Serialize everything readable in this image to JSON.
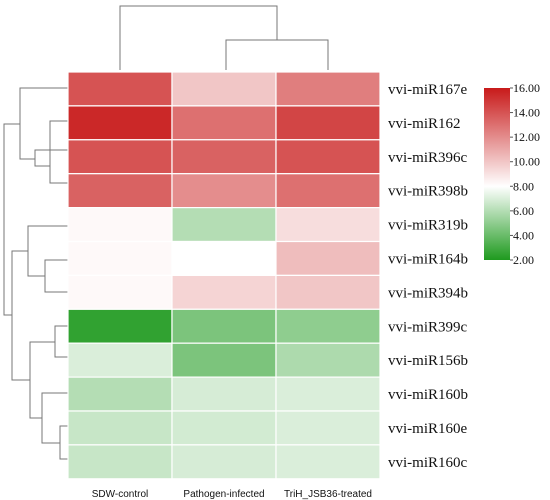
{
  "chart_data": {
    "type": "heatmap",
    "columns": [
      "SDW-control",
      "Pathogen-infected",
      "TriH_JSB36-treated"
    ],
    "rows": [
      "vvi-miR167e",
      "vvi-miR162",
      "vvi-miR396c",
      "vvi-miR398b",
      "vvi-miR319b",
      "vvi-miR164b",
      "vvi-miR394b",
      "vvi-miR399c",
      "vvi-miR156b",
      "vvi-miR160b",
      "vvi-miR160e",
      "vvi-miR160c"
    ],
    "values": [
      [
        14.0,
        10.0,
        12.5
      ],
      [
        15.5,
        13.0,
        14.5
      ],
      [
        14.0,
        13.5,
        14.0
      ],
      [
        13.5,
        12.0,
        13.0
      ],
      [
        8.2,
        6.0,
        9.2
      ],
      [
        8.2,
        8.0,
        10.3
      ],
      [
        8.2,
        9.5,
        10.0
      ],
      [
        2.5,
        4.5,
        5.0
      ],
      [
        7.0,
        4.5,
        5.8
      ],
      [
        6.0,
        6.9,
        7.0
      ],
      [
        6.5,
        6.8,
        7.0
      ],
      [
        6.5,
        6.9,
        7.0
      ]
    ],
    "colorbar": {
      "min": 2.0,
      "max": 16.0,
      "mid": 8.0,
      "ticks": [
        "2.00",
        "4.00",
        "6.00",
        "8.00",
        "10.00",
        "12.00",
        "14.00",
        "16.00"
      ],
      "low_color": "#1e9a1e",
      "mid_color": "#ffffff",
      "high_color": "#c81a1a"
    },
    "row_dendrogram": true,
    "column_dendrogram": true,
    "legend_position": "right"
  },
  "labels": {
    "columns": [
      "SDW-control",
      "Pathogen-infected",
      "TriH_JSB36-treated"
    ],
    "rows": [
      "vvi-miR167e",
      "vvi-miR162",
      "vvi-miR396c",
      "vvi-miR398b",
      "vvi-miR319b",
      "vvi-miR164b",
      "vvi-miR394b",
      "vvi-miR399c",
      "vvi-miR156b",
      "vvi-miR160b",
      "vvi-miR160e",
      "vvi-miR160c"
    ],
    "ticks": [
      "2.00",
      "4.00",
      "6.00",
      "8.00",
      "10.00",
      "12.00",
      "14.00",
      "16.00"
    ]
  }
}
